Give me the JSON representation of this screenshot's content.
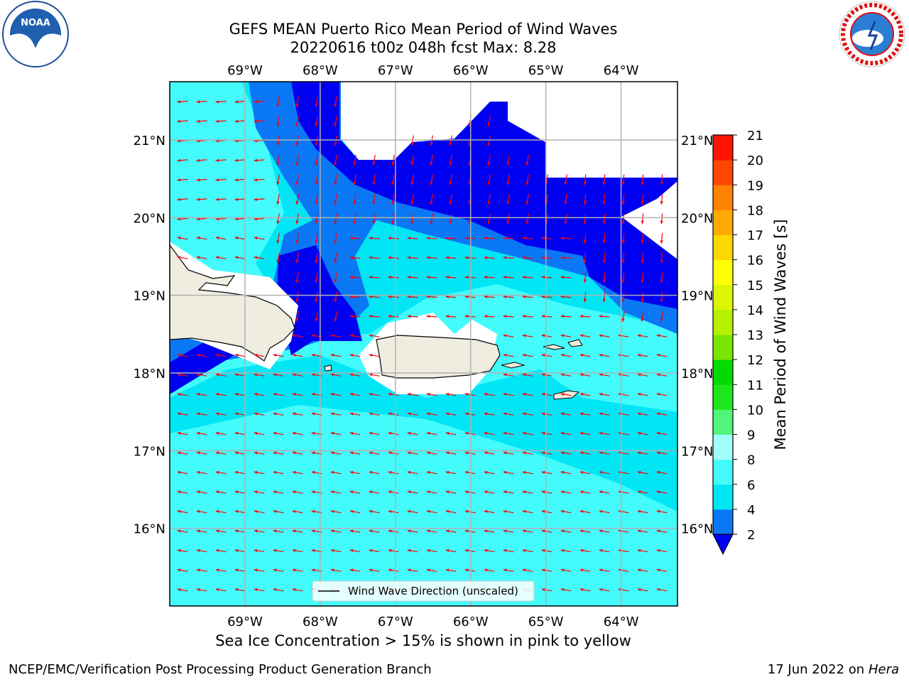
{
  "title_line1": "GEFS MEAN Puerto Rico Mean Period of Wind Waves",
  "title_line2": "20220616 t00z 048h fcst   Max: 8.28",
  "sea_ice_note": "Sea Ice Concentration > 15% is shown in pink to yellow",
  "footer_left": "NCEP/EMC/Verification Post Processing Product Generation Branch",
  "footer_date": "17 Jun 2022 on",
  "footer_machine": "Hera",
  "logos": {
    "left": "noaa-logo",
    "right": "nws-logo"
  },
  "map": {
    "lon_range": [
      -70.0,
      -63.25
    ],
    "lat_range": [
      15.0,
      21.75
    ],
    "lon_ticks": [
      "69°W",
      "68°W",
      "67°W",
      "66°W",
      "65°W",
      "64°W"
    ],
    "lat_ticks": [
      "21°N",
      "20°N",
      "19°N",
      "18°N",
      "17°N",
      "16°N"
    ],
    "legend_label": "Wind Wave Direction (unscaled)"
  },
  "colorbar": {
    "label": "Mean Period of Wind Waves [s]",
    "ticks": [
      "2",
      "4",
      "6",
      "8",
      "9",
      "10",
      "11",
      "12",
      "13",
      "14",
      "15",
      "16",
      "17",
      "18",
      "19",
      "20",
      "21"
    ],
    "colors": [
      "#0000f0",
      "#0a78f5",
      "#00e6f5",
      "#44fbfb",
      "#a0fffa",
      "#50f57a",
      "#1ee61e",
      "#00dc00",
      "#78e600",
      "#b4f000",
      "#dcf500",
      "#ffff00",
      "#ffd700",
      "#ffaa00",
      "#ff8200",
      "#ff4600",
      "#ff1400",
      "#ff0000"
    ]
  },
  "colors": {
    "land": "#efede0",
    "grid": "#b0b0b0",
    "arrow": "#ff0000"
  }
}
